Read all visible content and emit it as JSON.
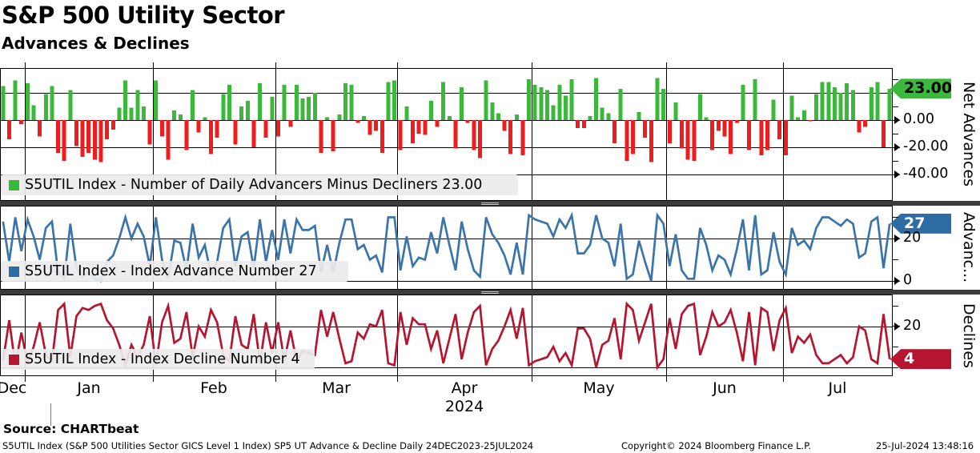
{
  "header": {
    "title": "S&P 500 Utility Sector",
    "subtitle": "Advances & Declines"
  },
  "panels": [
    {
      "legend": "S5UTIL Index - Number of Daily Advancers Minus Decliners 23.00"
    },
    {
      "legend": "S5UTIL Index - Index Advance Number 27"
    },
    {
      "legend": "S5UTIL Index - Index Decline Number 4"
    }
  ],
  "x_axis": {
    "months": [
      "Dec",
      "Jan",
      "Feb",
      "Mar",
      "Apr",
      "May",
      "Jun",
      "Jul"
    ],
    "year": "2024"
  },
  "source_label": "Source: CHARTbeat",
  "footer": {
    "left": "S5UTIL Index (S&P 500 Utilities Sector GICS Level 1 Index) SP5 UT Advance & Decline  Daily 24DEC2023-25JUL2024",
    "center": "Copyright© 2024 Bloomberg Finance L.P.",
    "right": "25-Jul-2024 13:48:16"
  },
  "colors": {
    "up_green": "#3ab83a",
    "down_red": "#ee1c1c",
    "advance_blue": "#3a74aa",
    "decline_crimson": "#b5152f",
    "grid": "#000000",
    "separator": "#3b3b3b",
    "legend_bg": "#ececec"
  },
  "chart_data": [
    {
      "type": "bar",
      "name": "S5UTIL Index - Number of Daily Advancers Minus Decliners",
      "last_value": 23.0,
      "period": "Daily 24DEC2023-25JUL2024",
      "x_months": [
        "Dec",
        "Jan",
        "Feb",
        "Mar",
        "Apr",
        "May",
        "Jun",
        "Jul"
      ],
      "trading_days_per_month": [
        4,
        21,
        20,
        20,
        22,
        22,
        19,
        18
      ],
      "values": [
        25,
        -14,
        29,
        -3,
        27,
        11,
        -12,
        19,
        25,
        -24,
        -30,
        22,
        -19,
        -27,
        -24,
        -29,
        -31,
        -14,
        -7,
        9,
        29,
        9,
        22,
        10,
        -18,
        29,
        -12,
        -29,
        7,
        4,
        -22,
        22,
        -9,
        2,
        -25,
        -13,
        19,
        26,
        -18,
        10,
        14,
        -20,
        27,
        -13,
        17,
        -12,
        26,
        -5,
        26,
        16,
        17,
        20,
        -24,
        2,
        -23,
        4,
        27,
        26,
        -2,
        3,
        -11,
        -8,
        -24,
        28,
        29,
        -22,
        10,
        -17,
        -10,
        -11,
        14,
        -5,
        28,
        3,
        -21,
        24,
        -2,
        -22,
        -28,
        29,
        13,
        5,
        -8,
        -25,
        4,
        -26,
        30,
        26,
        24,
        22,
        11,
        26,
        18,
        30,
        -6,
        -6,
        3,
        31,
        9,
        5,
        -17,
        23,
        -30,
        -25,
        6,
        -13,
        -31,
        31,
        23,
        -17,
        13,
        -21,
        -29,
        -30,
        19,
        2,
        -22,
        -8,
        -12,
        -25,
        -2,
        26,
        -22,
        30,
        -26,
        -22,
        15,
        -14,
        -26,
        18,
        2,
        7,
        -1,
        19,
        28,
        28,
        24,
        20,
        27,
        22,
        -9,
        -5,
        24,
        28,
        -20,
        23
      ],
      "ylim": [
        -38,
        38
      ],
      "gridlines": [
        20,
        0,
        -20,
        -40
      ],
      "major_ticks": [
        {
          "value": 0,
          "label": "0.00"
        },
        {
          "value": -20,
          "label": "-20.00"
        },
        {
          "value": -40,
          "label": "-40.00"
        }
      ],
      "minor_ticks": [
        30,
        10,
        -10,
        -30
      ],
      "tag": {
        "value": 23,
        "label": "23.00",
        "bg": "#3cb93c",
        "fg": "#000000"
      },
      "axis_title": "Net Advances",
      "up_color": "#3ab83a",
      "down_color": "#ee1c1c"
    },
    {
      "type": "line",
      "name": "S5UTIL Index - Index Advance Number",
      "last_value": 27,
      "values": [
        28,
        9,
        30,
        14,
        29,
        21,
        10,
        25,
        28,
        4,
        1,
        27,
        6,
        2,
        4,
        1,
        0,
        9,
        12,
        20,
        30,
        20,
        27,
        21,
        7,
        30,
        10,
        1,
        19,
        18,
        5,
        27,
        11,
        17,
        3,
        9,
        25,
        29,
        7,
        21,
        23,
        6,
        29,
        9,
        24,
        10,
        29,
        13,
        29,
        24,
        24,
        26,
        4,
        17,
        4,
        18,
        29,
        29,
        15,
        17,
        10,
        12,
        4,
        30,
        30,
        5,
        21,
        7,
        11,
        10,
        23,
        13,
        30,
        17,
        5,
        28,
        15,
        5,
        2,
        30,
        22,
        18,
        12,
        3,
        18,
        3,
        31,
        29,
        28,
        27,
        21,
        29,
        25,
        31,
        13,
        13,
        17,
        31,
        20,
        18,
        7,
        27,
        1,
        3,
        19,
        9,
        0,
        31,
        27,
        7,
        22,
        5,
        1,
        1,
        25,
        17,
        5,
        12,
        10,
        3,
        15,
        29,
        5,
        31,
        3,
        5,
        23,
        9,
        3,
        25,
        17,
        19,
        15,
        25,
        30,
        30,
        28,
        26,
        29,
        27,
        11,
        13,
        28,
        30,
        6,
        27
      ],
      "ylim": [
        -4,
        35
      ],
      "gridlines": [
        20,
        0
      ],
      "major_ticks": [
        {
          "value": 20,
          "label": "20"
        },
        {
          "value": 0,
          "label": "0"
        }
      ],
      "minor_ticks": [
        30,
        10
      ],
      "tag": {
        "value": 27,
        "label": "27",
        "bg": "#2e6ca4",
        "fg": "#ffffff"
      },
      "axis_title": "Advanc...",
      "color": "#3a74aa"
    },
    {
      "type": "line",
      "name": "S5UTIL Index - Index Decline Number",
      "last_value": 4,
      "values": [
        3,
        23,
        1,
        17,
        2,
        10,
        22,
        6,
        3,
        28,
        31,
        5,
        25,
        29,
        28,
        30,
        31,
        23,
        19,
        11,
        1,
        11,
        5,
        11,
        25,
        1,
        22,
        30,
        12,
        14,
        27,
        5,
        20,
        15,
        28,
        22,
        6,
        3,
        25,
        11,
        9,
        26,
        2,
        22,
        7,
        22,
        3,
        18,
        3,
        8,
        7,
        6,
        28,
        15,
        27,
        14,
        2,
        3,
        17,
        14,
        21,
        20,
        28,
        2,
        1,
        27,
        11,
        24,
        21,
        21,
        9,
        18,
        2,
        14,
        26,
        4,
        17,
        27,
        30,
        1,
        9,
        13,
        20,
        28,
        14,
        29,
        1,
        3,
        4,
        5,
        10,
        3,
        7,
        1,
        19,
        19,
        14,
        0,
        11,
        13,
        24,
        4,
        31,
        28,
        13,
        22,
        31,
        0,
        4,
        24,
        9,
        26,
        30,
        31,
        6,
        15,
        27,
        20,
        22,
        28,
        17,
        3,
        27,
        1,
        29,
        27,
        8,
        23,
        29,
        7,
        15,
        12,
        16,
        6,
        2,
        2,
        4,
        6,
        2,
        5,
        20,
        18,
        4,
        2,
        26,
        4
      ],
      "ylim": [
        -4,
        35
      ],
      "gridlines": [
        20,
        0
      ],
      "major_ticks": [
        {
          "value": 20,
          "label": "20"
        }
      ],
      "minor_ticks": [
        30,
        10,
        0
      ],
      "tag": {
        "value": 4,
        "label": "4",
        "bg": "#b5152f",
        "fg": "#ffffff"
      },
      "axis_title": "Declines",
      "color": "#b5152f"
    }
  ]
}
